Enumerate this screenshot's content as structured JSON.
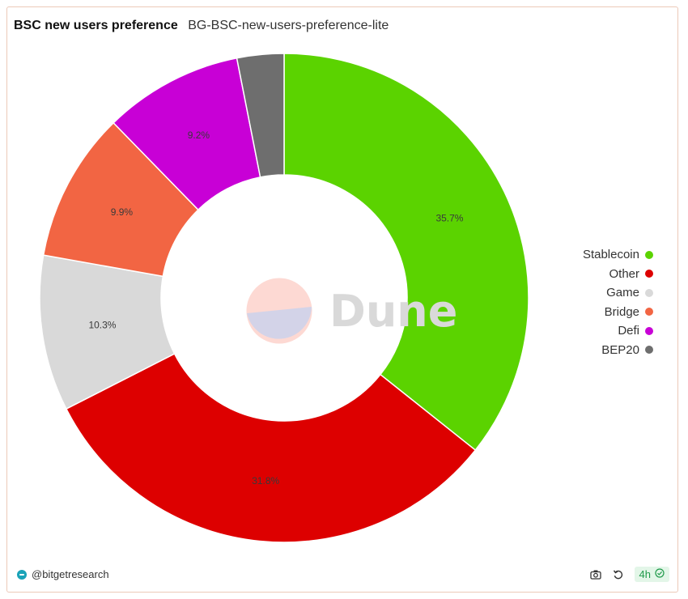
{
  "header": {
    "title": "BSC new users preference",
    "subtitle": "BG-BSC-new-users-preference-lite"
  },
  "chart_data": {
    "type": "pie",
    "donut": true,
    "series": [
      {
        "name": "Stablecoin",
        "value": 35.7,
        "label": "35.7%",
        "color": "#5bd300"
      },
      {
        "name": "Other",
        "value": 31.8,
        "label": "31.8%",
        "color": "#dd0000"
      },
      {
        "name": "Game",
        "value": 10.3,
        "label": "10.3%",
        "color": "#d9d9d9"
      },
      {
        "name": "Bridge",
        "value": 9.9,
        "label": "9.9%",
        "color": "#f26543"
      },
      {
        "name": "Defi",
        "value": 9.2,
        "label": "9.2%",
        "color": "#c800d6"
      },
      {
        "name": "BEP20",
        "value": 3.1,
        "label": "",
        "color": "#6e6e6e"
      }
    ],
    "legend_position": "right"
  },
  "watermark": {
    "text": "Dune"
  },
  "footer": {
    "author": "@bitgetresearch",
    "refresh_label": "4h",
    "icons": {
      "camera": "camera-icon",
      "refresh": "refresh-icon",
      "check": "check-circle-icon"
    }
  }
}
